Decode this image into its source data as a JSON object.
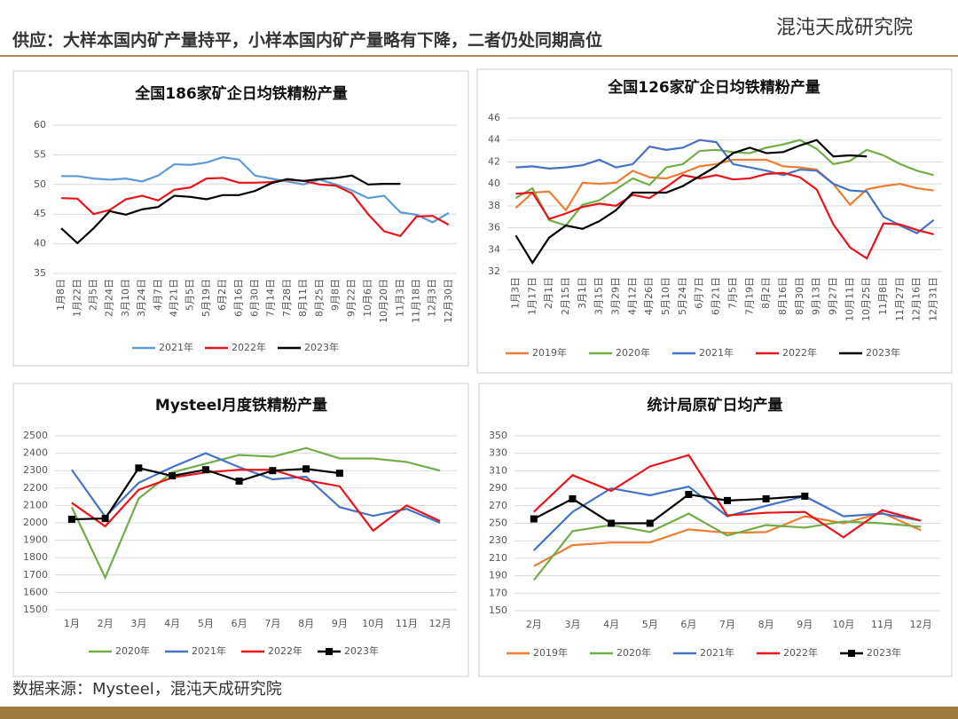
{
  "header": {
    "title": "供应：大样本国内矿产量持平，小样本国内矿产量略有下降，二者仍处同期高位",
    "logo": "混沌天成研究院"
  },
  "source": "数据来源：Mysteel，混沌天成研究院",
  "chart_data": [
    {
      "type": "line",
      "title": "全国186家矿企日均铁精粉产量",
      "categories": [
        "1月8日",
        "1月22日",
        "2月5日",
        "2月24日",
        "3月10日",
        "3月24日",
        "4月7日",
        "4月21日",
        "5月5日",
        "5月19日",
        "6月2日",
        "6月16日",
        "6月30日",
        "7月14日",
        "7月28日",
        "8月11日",
        "8月25日",
        "9月8日",
        "9月22日",
        "10月6日",
        "10月20日",
        "11月3日",
        "11月18日",
        "12月3日",
        "12月30日"
      ],
      "series": [
        {
          "name": "2021年",
          "color": "#5b9bd5",
          "values": [
            51.4,
            51.4,
            51.0,
            50.8,
            51.0,
            50.5,
            51.5,
            53.4,
            53.3,
            53.7,
            54.6,
            54.2,
            51.5,
            51.0,
            50.5,
            50.0,
            50.8,
            50.0,
            49.0,
            47.7,
            48.1,
            45.3,
            44.9,
            43.6,
            45.2
          ]
        },
        {
          "name": "2022年",
          "color": "#e8141a",
          "values": [
            47.7,
            47.6,
            45.0,
            45.7,
            47.5,
            48.1,
            47.3,
            49.1,
            49.5,
            51.0,
            51.1,
            50.3,
            50.3,
            50.4,
            50.8,
            50.6,
            50.0,
            49.8,
            48.5,
            45.0,
            42.1,
            41.3,
            44.6,
            44.7,
            43.2
          ]
        },
        {
          "name": "2023年",
          "color": "#000000",
          "values": [
            42.6,
            40.1,
            42.6,
            45.5,
            44.9,
            45.8,
            46.2,
            48.1,
            47.9,
            47.5,
            48.2,
            48.2,
            48.9,
            50.2,
            50.9,
            50.6,
            50.9,
            51.1,
            51.5,
            50.0,
            50.1,
            50.1,
            null,
            null,
            null
          ]
        }
      ],
      "ylim": [
        35,
        60
      ],
      "yticks": [
        35,
        40,
        45,
        50,
        55,
        60
      ]
    },
    {
      "type": "line",
      "title": "全国126家矿企日均铁精粉产量",
      "categories": [
        "1月3日",
        "1月17日",
        "2月1日",
        "2月15日",
        "3月1日",
        "3月15日",
        "3月29日",
        "4月12日",
        "4月26日",
        "5月10日",
        "5月24日",
        "6月7日",
        "6月21日",
        "7月5日",
        "7月19日",
        "8月2日",
        "8月16日",
        "8月30日",
        "9月13日",
        "9月27日",
        "10月11日",
        "10月25日",
        "11月8日",
        "11月27日",
        "12月16日",
        "12月31日"
      ],
      "series": [
        {
          "name": "2019年",
          "color": "#ed7d31",
          "values": [
            37.8,
            39.2,
            39.3,
            37.6,
            40.1,
            40.0,
            40.1,
            41.2,
            40.6,
            40.5,
            41.0,
            41.6,
            41.8,
            42.2,
            42.2,
            42.2,
            41.6,
            41.5,
            41.3,
            40.0,
            38.1,
            39.5,
            39.8,
            40.0,
            39.6,
            39.4
          ]
        },
        {
          "name": "2020年",
          "color": "#70ad47",
          "values": [
            38.7,
            39.6,
            36.7,
            36.2,
            38.1,
            38.5,
            39.5,
            40.5,
            39.9,
            41.5,
            41.8,
            43.0,
            43.1,
            42.9,
            42.8,
            43.3,
            43.6,
            44.0,
            43.2,
            41.8,
            42.1,
            43.1,
            42.6,
            41.8,
            41.2,
            40.8
          ]
        },
        {
          "name": "2021年",
          "color": "#4472c4",
          "values": [
            41.5,
            41.6,
            41.4,
            41.5,
            41.7,
            42.2,
            41.5,
            41.8,
            43.4,
            43.1,
            43.3,
            44.0,
            43.8,
            41.8,
            41.5,
            41.2,
            40.8,
            41.3,
            41.2,
            40.0,
            39.4,
            39.3,
            37.0,
            36.2,
            35.5,
            36.7
          ]
        },
        {
          "name": "2022年",
          "color": "#e8141a",
          "values": [
            39.1,
            39.2,
            36.8,
            37.3,
            37.9,
            38.2,
            38.0,
            39.0,
            38.7,
            39.7,
            40.8,
            40.5,
            40.8,
            40.4,
            40.5,
            40.9,
            41.0,
            40.6,
            39.5,
            36.3,
            34.2,
            33.2,
            36.4,
            36.3,
            35.8,
            35.4
          ]
        },
        {
          "name": "2023年",
          "color": "#000000",
          "values": [
            35.3,
            32.8,
            35.1,
            36.2,
            35.9,
            36.6,
            37.6,
            39.2,
            39.2,
            39.2,
            39.8,
            40.7,
            41.6,
            42.8,
            43.3,
            42.8,
            42.9,
            43.5,
            44.0,
            42.5,
            42.6,
            42.5,
            null,
            null,
            null,
            null
          ]
        }
      ],
      "ylim": [
        32,
        46
      ],
      "yticks": [
        32,
        34,
        36,
        38,
        40,
        42,
        44,
        46
      ]
    },
    {
      "type": "line",
      "title": "Mysteel月度铁精粉产量",
      "categories": [
        "1月",
        "2月",
        "3月",
        "4月",
        "5月",
        "6月",
        "7月",
        "8月",
        "9月",
        "10月",
        "11月",
        "12月"
      ],
      "series": [
        {
          "name": "2020年",
          "color": "#70ad47",
          "values": [
            2090,
            1685,
            2140,
            2290,
            2340,
            2390,
            2380,
            2430,
            2370,
            2370,
            2350,
            2300
          ]
        },
        {
          "name": "2021年",
          "color": "#4472c4",
          "values": [
            2305,
            2035,
            2230,
            2320,
            2400,
            2320,
            2250,
            2265,
            2090,
            2040,
            2080,
            2000
          ]
        },
        {
          "name": "2022年",
          "color": "#e8141a",
          "values": [
            2115,
            1980,
            2190,
            2260,
            2290,
            2305,
            2305,
            2245,
            2210,
            1955,
            2100,
            2010
          ]
        },
        {
          "name": "2023年",
          "color": "#000000",
          "marker": "square",
          "values": [
            2020,
            2025,
            2315,
            2270,
            2305,
            2240,
            2300,
            2310,
            2285,
            null,
            null,
            null
          ]
        }
      ],
      "ylim": [
        1500,
        2500
      ],
      "yticks": [
        1500,
        1600,
        1700,
        1800,
        1900,
        2000,
        2100,
        2200,
        2300,
        2400,
        2500
      ]
    },
    {
      "type": "line",
      "title": "统计局原矿日均产量",
      "categories": [
        "2月",
        "3月",
        "4月",
        "5月",
        "6月",
        "7月",
        "8月",
        "9月",
        "10月",
        "11月",
        "12月"
      ],
      "series": [
        {
          "name": "2019年",
          "color": "#ed7d31",
          "values": [
            201,
            225,
            228,
            228,
            243,
            239,
            240,
            258,
            250,
            262,
            242
          ]
        },
        {
          "name": "2020年",
          "color": "#70ad47",
          "values": [
            185,
            241,
            248,
            240,
            261,
            236,
            248,
            245,
            252,
            250,
            246
          ]
        },
        {
          "name": "2021年",
          "color": "#4472c4",
          "values": [
            219,
            263,
            290,
            282,
            292,
            258,
            270,
            281,
            258,
            261,
            253
          ]
        },
        {
          "name": "2022年",
          "color": "#e8141a",
          "values": [
            263,
            305,
            287,
            315,
            328,
            259,
            262,
            263,
            234,
            265,
            253
          ]
        },
        {
          "name": "2023年",
          "color": "#000000",
          "marker": "square",
          "values": [
            255,
            278,
            250,
            250,
            283,
            276,
            278,
            281,
            null,
            null,
            null
          ]
        }
      ],
      "ylim": [
        150,
        350
      ],
      "yticks": [
        150,
        170,
        190,
        210,
        230,
        250,
        270,
        290,
        310,
        330,
        350
      ]
    }
  ]
}
